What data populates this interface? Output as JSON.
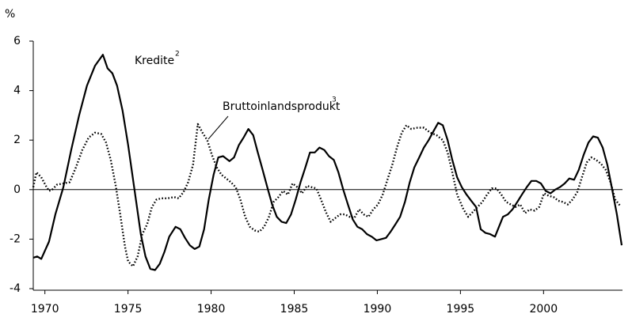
{
  "chart_data": {
    "type": "line",
    "y_label": "%",
    "xlim": [
      1969.3,
      2004.75
    ],
    "xticks": [
      1970,
      1975,
      1980,
      1985,
      1990,
      1995,
      2000
    ],
    "ylim": [
      -4,
      6
    ],
    "yticks": [
      -4,
      -2,
      0,
      2,
      4,
      6
    ],
    "series": [
      {
        "name": "Kredite",
        "note_marker": "2",
        "color": "#000000",
        "style": "solid",
        "x": [
          1969.3,
          1969.54,
          1969.78,
          1970.25,
          1970.63,
          1971.11,
          1971.58,
          1972.06,
          1972.53,
          1973.01,
          1973.49,
          1973.77,
          1974.06,
          1974.34,
          1974.67,
          1975.01,
          1975.39,
          1975.77,
          1976.05,
          1976.34,
          1976.63,
          1976.91,
          1977.2,
          1977.48,
          1977.86,
          1978.15,
          1978.43,
          1978.72,
          1979.01,
          1979.29,
          1979.58,
          1979.86,
          1980.15,
          1980.43,
          1980.72,
          1981.1,
          1981.38,
          1981.67,
          1981.95,
          1982.24,
          1982.53,
          1982.81,
          1983.1,
          1983.38,
          1983.67,
          1983.95,
          1984.24,
          1984.52,
          1984.81,
          1985.09,
          1985.38,
          1985.67,
          1985.95,
          1986.24,
          1986.52,
          1986.81,
          1987.09,
          1987.38,
          1987.66,
          1987.95,
          1988.23,
          1988.52,
          1988.8,
          1989.09,
          1989.38,
          1989.66,
          1989.95,
          1990.23,
          1990.52,
          1990.8,
          1991.09,
          1991.37,
          1991.66,
          1991.95,
          1992.23,
          1992.52,
          1992.8,
          1993.09,
          1993.37,
          1993.66,
          1993.94,
          1994.23,
          1994.51,
          1994.8,
          1995.08,
          1995.37,
          1995.65,
          1995.94,
          1996.22,
          1996.51,
          1996.79,
          1997.08,
          1997.56,
          1997.85,
          1998.13,
          1998.42,
          1998.7,
          1998.99,
          1999.27,
          1999.56,
          1999.84,
          2000.13,
          2000.42,
          2000.7,
          2000.98,
          2001.27,
          2001.55,
          2001.84,
          2002.12,
          2002.41,
          2002.7,
          2002.98,
          2003.27,
          2003.56,
          2003.84,
          2004.13,
          2004.41,
          2004.7
        ],
        "values": [
          -2.75,
          -2.7,
          -2.8,
          -2.1,
          -1.0,
          0.1,
          1.6,
          3.0,
          4.2,
          5.0,
          5.45,
          4.9,
          4.7,
          4.2,
          3.2,
          1.8,
          0,
          -1.8,
          -2.7,
          -3.2,
          -3.25,
          -3.0,
          -2.5,
          -1.9,
          -1.5,
          -1.6,
          -1.95,
          -2.25,
          -2.4,
          -2.3,
          -1.6,
          -0.4,
          0.6,
          1.3,
          1.35,
          1.15,
          1.3,
          1.8,
          2.1,
          2.45,
          2.2,
          1.5,
          0.8,
          0.1,
          -0.6,
          -1.1,
          -1.3,
          -1.35,
          -1.0,
          -0.4,
          0.3,
          0.9,
          1.5,
          1.5,
          1.7,
          1.6,
          1.35,
          1.2,
          0.7,
          0,
          -0.6,
          -1.2,
          -1.5,
          -1.6,
          -1.8,
          -1.9,
          -2.05,
          -2.0,
          -1.95,
          -1.7,
          -1.4,
          -1.1,
          -0.5,
          0.3,
          0.9,
          1.3,
          1.7,
          2.0,
          2.35,
          2.7,
          2.6,
          2.0,
          1.2,
          0.5,
          0.1,
          -0.2,
          -0.45,
          -0.7,
          -1.6,
          -1.75,
          -1.8,
          -1.9,
          -1.1,
          -1.0,
          -0.8,
          -0.5,
          -0.2,
          0.1,
          0.35,
          0.35,
          0.25,
          -0.05,
          -0.15,
          0,
          0.1,
          0.25,
          0.45,
          0.4,
          0.8,
          1.4,
          1.9,
          2.15,
          2.1,
          1.7,
          1.0,
          0,
          -1.0,
          -2.25
        ]
      },
      {
        "name": "Bruttoinlandsprodukt",
        "note_marker": "3",
        "color": "#000000",
        "style": "dotted",
        "x": [
          1969.3,
          1969.49,
          1969.78,
          1970.06,
          1970.25,
          1970.44,
          1970.73,
          1971.11,
          1971.49,
          1971.87,
          1972.25,
          1972.63,
          1973.01,
          1973.39,
          1973.68,
          1973.96,
          1974.25,
          1974.53,
          1974.82,
          1975.01,
          1975.3,
          1975.58,
          1975.86,
          1976.15,
          1976.44,
          1976.72,
          1977.01,
          1977.39,
          1977.77,
          1978.05,
          1978.34,
          1978.62,
          1978.91,
          1979.2,
          1979.48,
          1979.77,
          1980.05,
          1980.34,
          1980.62,
          1980.91,
          1981.19,
          1981.48,
          1981.76,
          1982.05,
          1982.33,
          1982.62,
          1982.9,
          1983.19,
          1983.48,
          1983.76,
          1984.05,
          1984.33,
          1984.62,
          1984.9,
          1985.19,
          1985.47,
          1985.76,
          1986.04,
          1986.33,
          1986.61,
          1986.9,
          1987.19,
          1987.47,
          1987.76,
          1988.04,
          1988.33,
          1988.61,
          1988.9,
          1989.18,
          1989.47,
          1989.75,
          1990.04,
          1990.32,
          1990.61,
          1990.9,
          1991.18,
          1991.47,
          1991.75,
          1992.04,
          1992.42,
          1992.8,
          1993.18,
          1993.56,
          1993.94,
          1994.23,
          1994.51,
          1994.8,
          1995.18,
          1995.47,
          1995.75,
          1996.03,
          1996.32,
          1996.6,
          1996.89,
          1997.17,
          1997.46,
          1997.75,
          1998.03,
          1998.32,
          1998.6,
          1998.89,
          1999.17,
          1999.46,
          1999.74,
          2000.03,
          2000.31,
          2000.6,
          2000.89,
          2001.17,
          2001.46,
          2001.75,
          2002.03,
          2002.31,
          2002.6,
          2002.88,
          2003.17,
          2003.45,
          2003.74,
          2004.03,
          2004.31,
          2004.6
        ],
        "values": [
          0.1,
          0.7,
          0.5,
          0.15,
          -0.05,
          0.0,
          0.2,
          0.25,
          0.3,
          0.9,
          1.6,
          2.1,
          2.3,
          2.25,
          1.9,
          1.2,
          0.2,
          -1.0,
          -2.3,
          -2.9,
          -3.1,
          -2.7,
          -1.8,
          -1.4,
          -0.7,
          -0.4,
          -0.35,
          -0.35,
          -0.3,
          -0.35,
          -0.1,
          0.3,
          1.0,
          2.65,
          2.3,
          2.0,
          1.4,
          0.9,
          0.6,
          0.45,
          0.3,
          0.1,
          -0.4,
          -1.1,
          -1.5,
          -1.65,
          -1.7,
          -1.5,
          -1.1,
          -0.5,
          -0.3,
          -0.05,
          -0.2,
          0.25,
          0.1,
          -0.15,
          0.15,
          0.1,
          0.05,
          -0.4,
          -0.9,
          -1.3,
          -1.15,
          -1.0,
          -1.0,
          -1.1,
          -1.15,
          -0.8,
          -1.0,
          -1.1,
          -0.8,
          -0.6,
          -0.2,
          0.4,
          1.0,
          1.7,
          2.3,
          2.6,
          2.45,
          2.5,
          2.5,
          2.3,
          2.2,
          2.0,
          1.5,
          0.7,
          -0.2,
          -0.8,
          -1.1,
          -0.9,
          -0.7,
          -0.5,
          -0.2,
          0.05,
          0.05,
          -0.2,
          -0.5,
          -0.6,
          -0.7,
          -0.6,
          -0.95,
          -0.8,
          -0.85,
          -0.7,
          -0.15,
          -0.25,
          -0.3,
          -0.45,
          -0.5,
          -0.6,
          -0.4,
          -0.1,
          0.5,
          1.1,
          1.3,
          1.2,
          1.05,
          0.8,
          0.3,
          -0.4,
          -0.65
        ]
      }
    ]
  }
}
